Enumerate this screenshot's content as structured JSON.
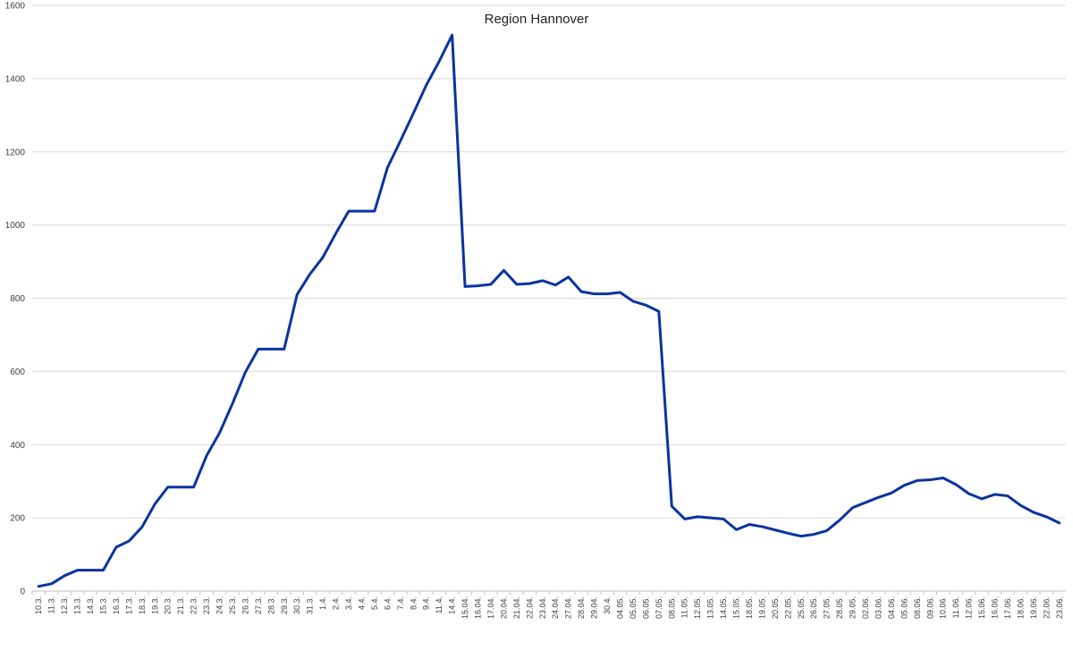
{
  "chart_data": {
    "type": "line",
    "title": "Region Hannover",
    "xlabel": "",
    "ylabel": "",
    "ylim": [
      0,
      1600
    ],
    "yticks": [
      0,
      200,
      400,
      600,
      800,
      1000,
      1200,
      1400,
      1600
    ],
    "grid": true,
    "legend": "none",
    "line_color": "#0b33a0",
    "categories": [
      "10.3.",
      "11.3.",
      "12.3.",
      "13.3.",
      "14.3.",
      "15.3.",
      "16.3.",
      "17.3.",
      "18.3.",
      "19.3.",
      "20.3.",
      "21.3.",
      "22.3.",
      "23.3.",
      "24.3.",
      "25.3.",
      "26.3.",
      "27.3.",
      "28.3.",
      "29.3.",
      "30.3.",
      "31.3.",
      "1.4.",
      "2.4.",
      "3.4.",
      "4.4.",
      "5.4.",
      "6.4.",
      "7.4.",
      "8.4.",
      "9.4.",
      "11.4.",
      "14.4.",
      "15.04.",
      "16.04.",
      "17.04.",
      "20.04.",
      "21.04.",
      "22.04.",
      "23.04.",
      "24.04.",
      "27.04.",
      "28.04.",
      "29.04.",
      "30.4.",
      "04.05.",
      "05.05.",
      "06.05.",
      "07.05.",
      "08.05.",
      "11.05.",
      "12.05.",
      "13.05.",
      "14.05.",
      "15.05.",
      "18.05.",
      "19.05.",
      "20.05.",
      "22.05.",
      "25.05.",
      "26.05.",
      "27.05.",
      "28.05.",
      "29.05.",
      "02.06.",
      "03.06.",
      "04.06.",
      "05.06.",
      "08.06.",
      "09.06.",
      "10.06.",
      "11.06.",
      "12.06.",
      "15.06.",
      "16.06.",
      "17.06.",
      "18.06.",
      "19.06.",
      "22.06.",
      "23.06."
    ],
    "values": [
      13,
      20,
      42,
      57,
      57,
      57,
      120,
      137,
      175,
      238,
      284,
      284,
      284,
      370,
      432,
      512,
      598,
      661,
      661,
      661,
      810,
      866,
      912,
      977,
      1038,
      1038,
      1038,
      1157,
      1230,
      1305,
      1382,
      1447,
      1519,
      832,
      834,
      838,
      876,
      838,
      840,
      848,
      836,
      858,
      818,
      812,
      812,
      816,
      792,
      781,
      764,
      232,
      197,
      203,
      200,
      197,
      168,
      182,
      176,
      167,
      158,
      150,
      155,
      165,
      194,
      228,
      242,
      256,
      268,
      289,
      302,
      304,
      309,
      291,
      266,
      252,
      264,
      260,
      234,
      215,
      203,
      186
    ]
  }
}
